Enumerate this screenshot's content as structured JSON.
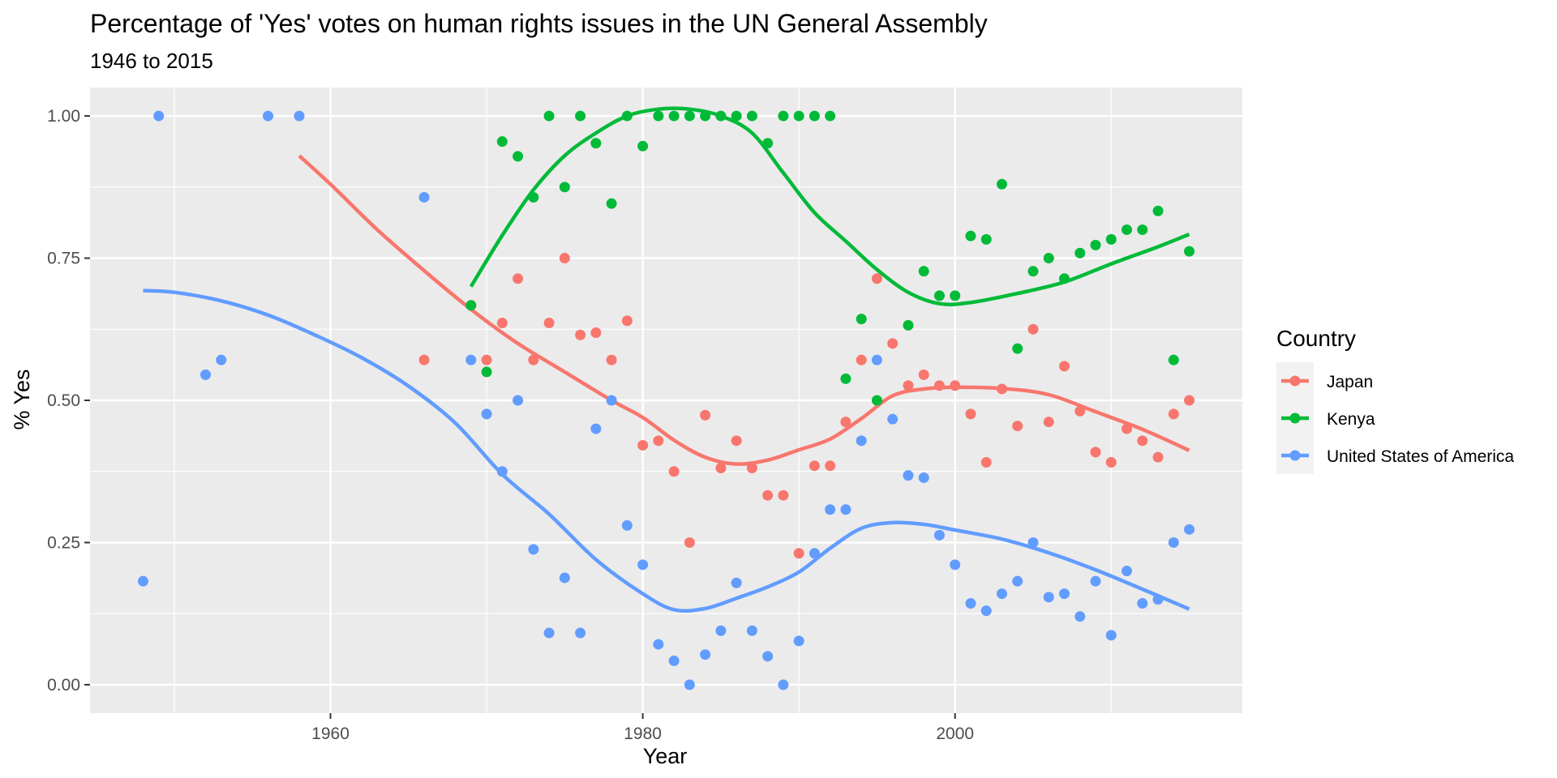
{
  "chart_data": {
    "type": "scatter",
    "title": "Percentage of 'Yes' votes  on human rights issues in the UN General Assembly",
    "subtitle": "1946 to 2015",
    "xlabel": "Year",
    "ylabel": "% Yes",
    "xlim": [
      1944.6,
      2018.4
    ],
    "ylim": [
      -0.05,
      1.05
    ],
    "x_ticks": [
      1960,
      1980,
      2000
    ],
    "y_ticks": [
      0.0,
      0.25,
      0.5,
      0.75,
      1.0
    ],
    "y_tick_labels": [
      "0.00",
      "0.25",
      "0.50",
      "0.75",
      "1.00"
    ],
    "grid": true,
    "smooth": true,
    "legend": {
      "title": "Country",
      "position": "right"
    },
    "series": [
      {
        "name": "Japan",
        "color": "#F8766D",
        "points": [
          [
            1966,
            0.571
          ],
          [
            1969,
            0.667
          ],
          [
            1970,
            0.571
          ],
          [
            1971,
            0.636
          ],
          [
            1972,
            0.714
          ],
          [
            1973,
            0.571
          ],
          [
            1974,
            0.636
          ],
          [
            1975,
            0.75
          ],
          [
            1976,
            0.615
          ],
          [
            1977,
            0.619
          ],
          [
            1978,
            0.571
          ],
          [
            1979,
            0.64
          ],
          [
            1980,
            0.421
          ],
          [
            1981,
            0.429
          ],
          [
            1982,
            0.375
          ],
          [
            1983,
            0.25
          ],
          [
            1984,
            0.474
          ],
          [
            1985,
            0.381
          ],
          [
            1986,
            0.429
          ],
          [
            1987,
            0.381
          ],
          [
            1988,
            0.333
          ],
          [
            1989,
            0.333
          ],
          [
            1990,
            0.231
          ],
          [
            1991,
            0.385
          ],
          [
            1992,
            0.385
          ],
          [
            1993,
            0.462
          ],
          [
            1994,
            0.571
          ],
          [
            1995,
            0.714
          ],
          [
            1996,
            0.6
          ],
          [
            1997,
            0.526
          ],
          [
            1998,
            0.545
          ],
          [
            1999,
            0.526
          ],
          [
            2000,
            0.526
          ],
          [
            2001,
            0.476
          ],
          [
            2002,
            0.391
          ],
          [
            2003,
            0.52
          ],
          [
            2004,
            0.455
          ],
          [
            2005,
            0.625
          ],
          [
            2006,
            0.462
          ],
          [
            2007,
            0.56
          ],
          [
            2008,
            0.481
          ],
          [
            2009,
            0.409
          ],
          [
            2010,
            0.391
          ],
          [
            2011,
            0.45
          ],
          [
            2012,
            0.429
          ],
          [
            2013,
            0.4
          ],
          [
            2014,
            0.476
          ],
          [
            2015,
            0.5
          ]
        ],
        "smooth": [
          [
            1958,
            0.93
          ],
          [
            1960,
            0.88
          ],
          [
            1963,
            0.8
          ],
          [
            1966,
            0.728
          ],
          [
            1969,
            0.66
          ],
          [
            1972,
            0.6
          ],
          [
            1975,
            0.55
          ],
          [
            1978,
            0.5
          ],
          [
            1980,
            0.47
          ],
          [
            1982,
            0.43
          ],
          [
            1984,
            0.4
          ],
          [
            1986,
            0.388
          ],
          [
            1988,
            0.395
          ],
          [
            1990,
            0.413
          ],
          [
            1992,
            0.432
          ],
          [
            1994,
            0.468
          ],
          [
            1996,
            0.508
          ],
          [
            1998,
            0.52
          ],
          [
            2000,
            0.523
          ],
          [
            2003,
            0.521
          ],
          [
            2006,
            0.51
          ],
          [
            2009,
            0.48
          ],
          [
            2012,
            0.449
          ],
          [
            2015,
            0.412
          ]
        ]
      },
      {
        "name": "Kenya",
        "color": "#00BA38",
        "points": [
          [
            1969,
            0.667
          ],
          [
            1970,
            0.55
          ],
          [
            1971,
            0.955
          ],
          [
            1972,
            0.929
          ],
          [
            1973,
            0.857
          ],
          [
            1974,
            1.0
          ],
          [
            1975,
            0.875
          ],
          [
            1976,
            1.0
          ],
          [
            1977,
            0.952
          ],
          [
            1978,
            0.846
          ],
          [
            1979,
            1.0
          ],
          [
            1980,
            0.947
          ],
          [
            1981,
            1.0
          ],
          [
            1982,
            1.0
          ],
          [
            1983,
            1.0
          ],
          [
            1984,
            1.0
          ],
          [
            1985,
            1.0
          ],
          [
            1986,
            1.0
          ],
          [
            1987,
            1.0
          ],
          [
            1988,
            0.952
          ],
          [
            1989,
            1.0
          ],
          [
            1990,
            1.0
          ],
          [
            1991,
            1.0
          ],
          [
            1992,
            1.0
          ],
          [
            1993,
            0.538
          ],
          [
            1994,
            0.643
          ],
          [
            1995,
            0.5
          ],
          [
            1997,
            0.632
          ],
          [
            1998,
            0.727
          ],
          [
            1999,
            0.684
          ],
          [
            2000,
            0.684
          ],
          [
            2001,
            0.789
          ],
          [
            2002,
            0.783
          ],
          [
            2003,
            0.88
          ],
          [
            2004,
            0.591
          ],
          [
            2005,
            0.727
          ],
          [
            2006,
            0.75
          ],
          [
            2007,
            0.714
          ],
          [
            2008,
            0.759
          ],
          [
            2009,
            0.773
          ],
          [
            2010,
            0.783
          ],
          [
            2011,
            0.8
          ],
          [
            2012,
            0.8
          ],
          [
            2013,
            0.833
          ],
          [
            2014,
            0.571
          ],
          [
            2015,
            0.762
          ]
        ],
        "smooth": [
          [
            1969,
            0.7
          ],
          [
            1971,
            0.79
          ],
          [
            1973,
            0.87
          ],
          [
            1975,
            0.93
          ],
          [
            1977,
            0.97
          ],
          [
            1979,
            1.0
          ],
          [
            1981,
            1.012
          ],
          [
            1983,
            1.012
          ],
          [
            1985,
            1.0
          ],
          [
            1987,
            0.97
          ],
          [
            1989,
            0.9
          ],
          [
            1991,
            0.83
          ],
          [
            1993,
            0.78
          ],
          [
            1995,
            0.73
          ],
          [
            1997,
            0.69
          ],
          [
            1999,
            0.67
          ],
          [
            2001,
            0.672
          ],
          [
            2004,
            0.688
          ],
          [
            2007,
            0.708
          ],
          [
            2010,
            0.74
          ],
          [
            2013,
            0.77
          ],
          [
            2015,
            0.792
          ]
        ]
      },
      {
        "name": "United States of America",
        "color": "#619CFF",
        "points": [
          [
            1948,
            0.182
          ],
          [
            1949,
            1.0
          ],
          [
            1952,
            0.545
          ],
          [
            1953,
            0.571
          ],
          [
            1956,
            1.0
          ],
          [
            1958,
            1.0
          ],
          [
            1966,
            0.857
          ],
          [
            1969,
            0.571
          ],
          [
            1970,
            0.476
          ],
          [
            1971,
            0.375
          ],
          [
            1972,
            0.5
          ],
          [
            1973,
            0.238
          ],
          [
            1974,
            0.091
          ],
          [
            1975,
            0.188
          ],
          [
            1976,
            0.091
          ],
          [
            1977,
            0.45
          ],
          [
            1978,
            0.5
          ],
          [
            1979,
            0.28
          ],
          [
            1980,
            0.211
          ],
          [
            1981,
            0.071
          ],
          [
            1982,
            0.042
          ],
          [
            1983,
            0.0
          ],
          [
            1984,
            0.053
          ],
          [
            1985,
            0.095
          ],
          [
            1986,
            0.179
          ],
          [
            1987,
            0.095
          ],
          [
            1988,
            0.05
          ],
          [
            1989,
            0.0
          ],
          [
            1990,
            0.077
          ],
          [
            1991,
            0.231
          ],
          [
            1992,
            0.308
          ],
          [
            1993,
            0.308
          ],
          [
            1994,
            0.429
          ],
          [
            1995,
            0.571
          ],
          [
            1996,
            0.467
          ],
          [
            1997,
            0.368
          ],
          [
            1998,
            0.364
          ],
          [
            1999,
            0.263
          ],
          [
            2000,
            0.211
          ],
          [
            2001,
            0.143
          ],
          [
            2002,
            0.13
          ],
          [
            2003,
            0.16
          ],
          [
            2004,
            0.182
          ],
          [
            2005,
            0.25
          ],
          [
            2006,
            0.154
          ],
          [
            2007,
            0.16
          ],
          [
            2008,
            0.12
          ],
          [
            2009,
            0.182
          ],
          [
            2010,
            0.087
          ],
          [
            2011,
            0.2
          ],
          [
            2012,
            0.143
          ],
          [
            2013,
            0.15
          ],
          [
            2014,
            0.25
          ],
          [
            2015,
            0.273
          ]
        ],
        "smooth": [
          [
            1948,
            0.693
          ],
          [
            1950,
            0.69
          ],
          [
            1953,
            0.675
          ],
          [
            1956,
            0.65
          ],
          [
            1959,
            0.615
          ],
          [
            1962,
            0.575
          ],
          [
            1965,
            0.525
          ],
          [
            1968,
            0.46
          ],
          [
            1971,
            0.37
          ],
          [
            1974,
            0.3
          ],
          [
            1977,
            0.22
          ],
          [
            1980,
            0.16
          ],
          [
            1982,
            0.132
          ],
          [
            1984,
            0.134
          ],
          [
            1986,
            0.152
          ],
          [
            1988,
            0.172
          ],
          [
            1990,
            0.198
          ],
          [
            1992,
            0.24
          ],
          [
            1994,
            0.275
          ],
          [
            1996,
            0.285
          ],
          [
            1998,
            0.282
          ],
          [
            2000,
            0.272
          ],
          [
            2003,
            0.256
          ],
          [
            2006,
            0.232
          ],
          [
            2009,
            0.202
          ],
          [
            2012,
            0.168
          ],
          [
            2015,
            0.133
          ]
        ]
      }
    ]
  }
}
